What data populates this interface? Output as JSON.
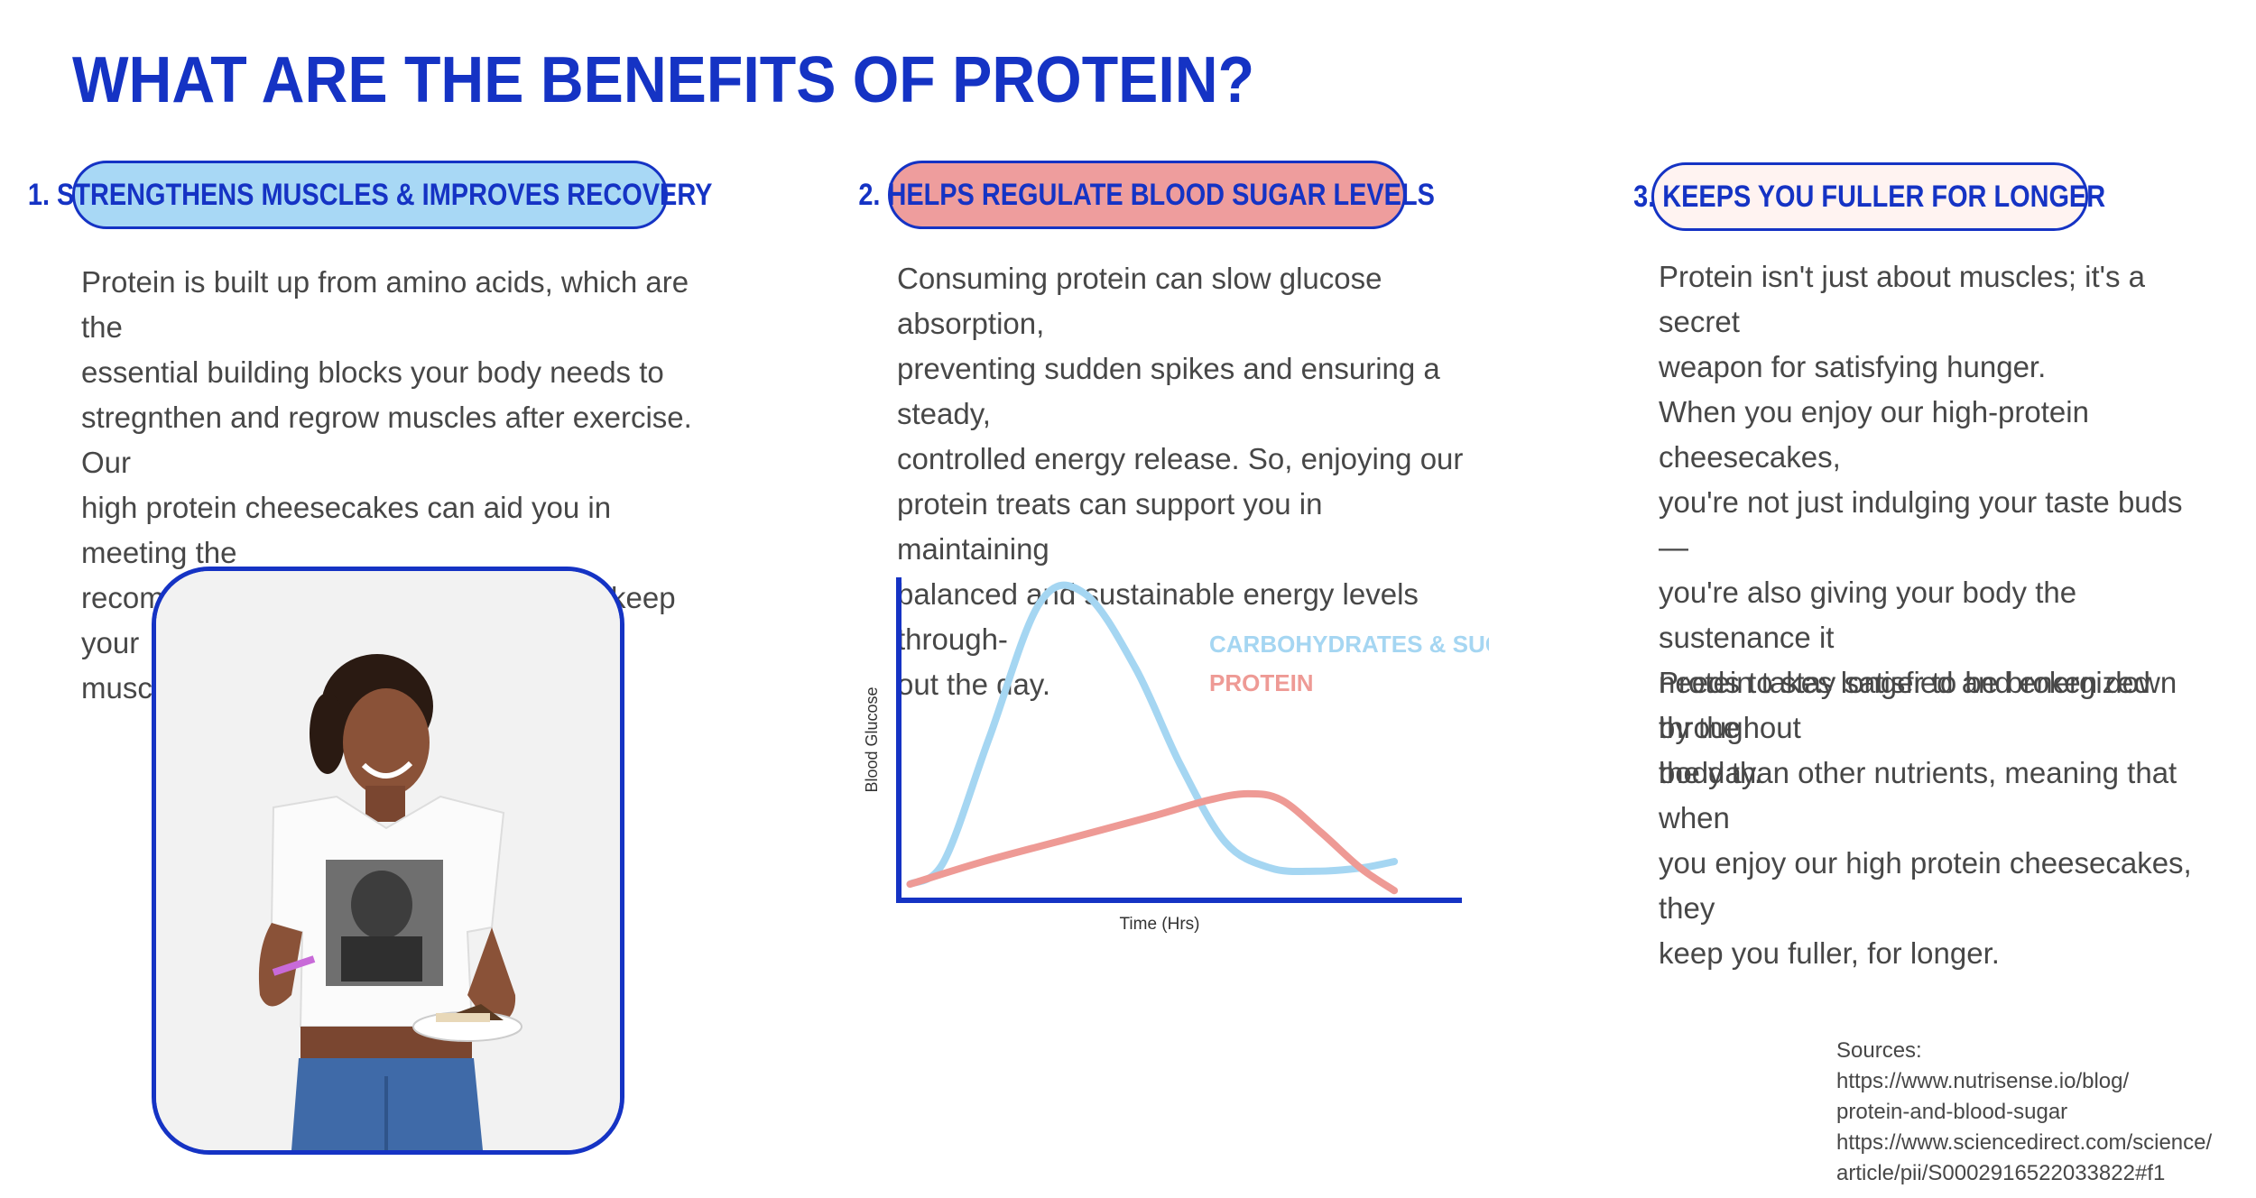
{
  "page": {
    "title": "WHAT ARE THE BENEFITS OF PROTEIN?"
  },
  "columns": [
    {
      "heading": "1. STRENGTHENS MUSCLES & IMPROVES RECOVERY",
      "accent": "#a8d8f5",
      "text": "Protein is built up from amino acids, which are the\nessential building blocks your body needs to\nstregnthen and regrow muscles after exercise. Our\nhigh protein cheesecakes can aid you in meeting the\nrecommended daily intake of protein, to keep your\nmuscles and bones strong."
    },
    {
      "heading": "2. HELPS REGULATE BLOOD SUGAR LEVELS",
      "accent": "#ee9d9d",
      "text": "Consuming protein can slow glucose absorption,\npreventing sudden spikes and ensuring a steady,\ncontrolled energy release. So, enjoying our\nprotein treats can support you in maintaining\nbalanced and sustainable energy levels through-\nout the day."
    },
    {
      "heading": "3. KEEPS YOU FULLER FOR LONGER",
      "accent": "#fff3f1",
      "paragraphs": [
        "Protein isn't just about muscles; it's a secret\nweapon for satisfying hunger.",
        "When you enjoy our high-protein cheesecakes,\nyou're not just indulging your taste buds —\nyou're also giving your body the sustenance it\nneeds to stay satisfied and energized throughout\nthe day.",
        "Protein takes longer to be broken down by the\nbody than other nutrients, meaning that when\nyou enjoy our high protein cheesecakes, they\nkeep you fuller, for longer."
      ]
    }
  ],
  "photo": {
    "subject": "woman-holding-cheesecake"
  },
  "chart_data": {
    "type": "line",
    "xlabel": "Time (Hrs)",
    "ylabel": "Blood Glucose",
    "xlim": [
      0,
      10
    ],
    "ylim": [
      0,
      10
    ],
    "grid": false,
    "legend_position": "top-right",
    "series": [
      {
        "name": "CARBOHYDRATES & SUGARS",
        "color": "#a5d6f2",
        "x": [
          0.2,
          0.8,
          1.6,
          2.5,
          3.3,
          4.2,
          5.0,
          5.8,
          6.6,
          7.4,
          8.2,
          8.8
        ],
        "y": [
          0.5,
          1.2,
          5.0,
          9.2,
          9.5,
          7.2,
          4.2,
          1.8,
          1.0,
          0.9,
          1.0,
          1.2
        ]
      },
      {
        "name": "PROTEIN",
        "color": "#ee9a95",
        "x": [
          0.2,
          1.5,
          3.0,
          4.5,
          5.5,
          6.2,
          6.8,
          7.5,
          8.2,
          8.8
        ],
        "y": [
          0.5,
          1.2,
          1.9,
          2.6,
          3.1,
          3.3,
          3.1,
          2.1,
          1.0,
          0.3
        ]
      }
    ],
    "axis_color": "#1533c4"
  },
  "sources": {
    "label": "Sources:",
    "lines": [
      "https://www.nutrisense.io/blog/",
      "protein-and-blood-sugar",
      "https://www.sciencedirect.com/science/",
      "article/pii/S0002916522033822#f1"
    ]
  }
}
